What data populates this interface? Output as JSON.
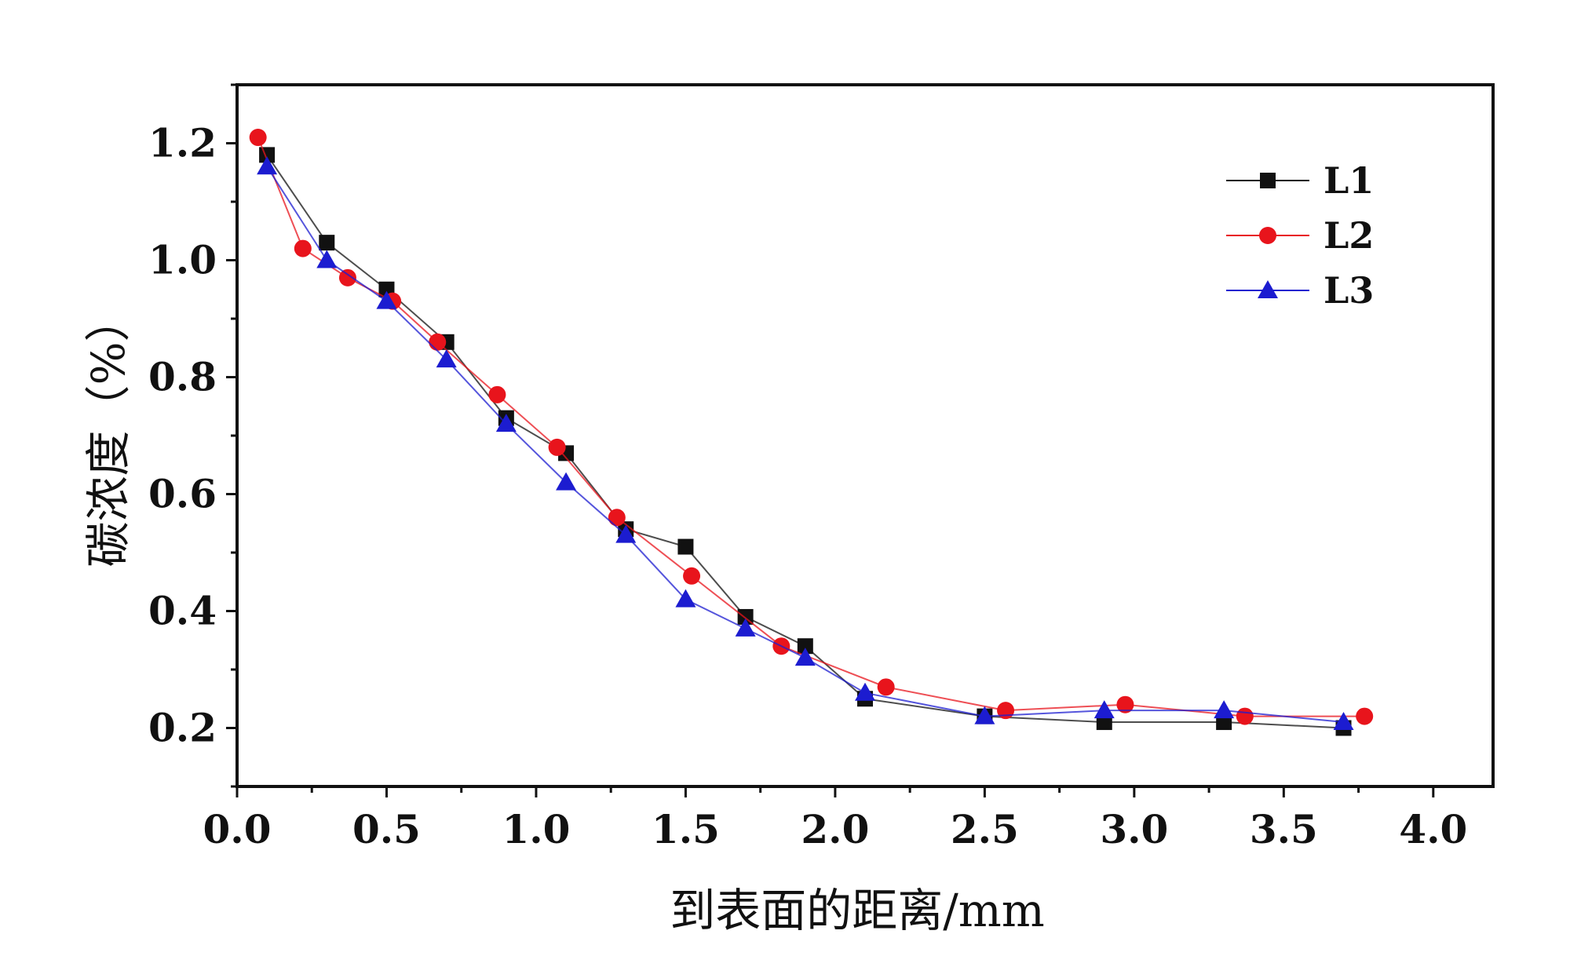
{
  "chart_data": {
    "type": "line",
    "title": "",
    "xlabel": "到表面的距离/mm",
    "ylabel": "碳浓度（%）",
    "xlim": [
      0.0,
      4.2
    ],
    "ylim": [
      0.1,
      1.3
    ],
    "x_ticks": [
      0.0,
      0.5,
      1.0,
      1.5,
      2.0,
      2.5,
      3.0,
      3.5,
      4.0
    ],
    "x_tick_labels": [
      "0.0",
      "0.5",
      "1.0",
      "1.5",
      "2.0",
      "2.5",
      "3.0",
      "3.5",
      "4.0"
    ],
    "y_ticks": [
      0.2,
      0.4,
      0.6,
      0.8,
      1.0,
      1.2
    ],
    "y_tick_labels": [
      "0.2",
      "0.4",
      "0.6",
      "0.8",
      "1.0",
      "1.2"
    ],
    "grid": false,
    "legend_position": "top-right",
    "series": [
      {
        "name": "L1",
        "marker": "square",
        "color": "#111111",
        "x": [
          0.1,
          0.3,
          0.5,
          0.7,
          0.9,
          1.1,
          1.3,
          1.5,
          1.7,
          1.9,
          2.1,
          2.5,
          2.9,
          3.3,
          3.7
        ],
        "y": [
          1.18,
          1.03,
          0.95,
          0.86,
          0.73,
          0.67,
          0.54,
          0.51,
          0.39,
          0.34,
          0.25,
          0.22,
          0.21,
          0.21,
          0.2
        ]
      },
      {
        "name": "L2",
        "marker": "circle",
        "color": "#e8141c",
        "x": [
          0.07,
          0.22,
          0.37,
          0.52,
          0.67,
          0.87,
          1.07,
          1.27,
          1.52,
          1.82,
          2.17,
          2.57,
          2.97,
          3.37,
          3.77
        ],
        "y": [
          1.21,
          1.02,
          0.97,
          0.93,
          0.86,
          0.77,
          0.68,
          0.56,
          0.46,
          0.34,
          0.27,
          0.23,
          0.24,
          0.22,
          0.22
        ]
      },
      {
        "name": "L3",
        "marker": "triangle",
        "color": "#1c1cd0",
        "x": [
          0.1,
          0.3,
          0.5,
          0.7,
          0.9,
          1.1,
          1.3,
          1.5,
          1.7,
          1.9,
          2.1,
          2.5,
          2.9,
          3.3,
          3.7
        ],
        "y": [
          1.16,
          1.0,
          0.93,
          0.83,
          0.72,
          0.62,
          0.53,
          0.42,
          0.37,
          0.32,
          0.26,
          0.22,
          0.23,
          0.23,
          0.21
        ]
      }
    ]
  }
}
